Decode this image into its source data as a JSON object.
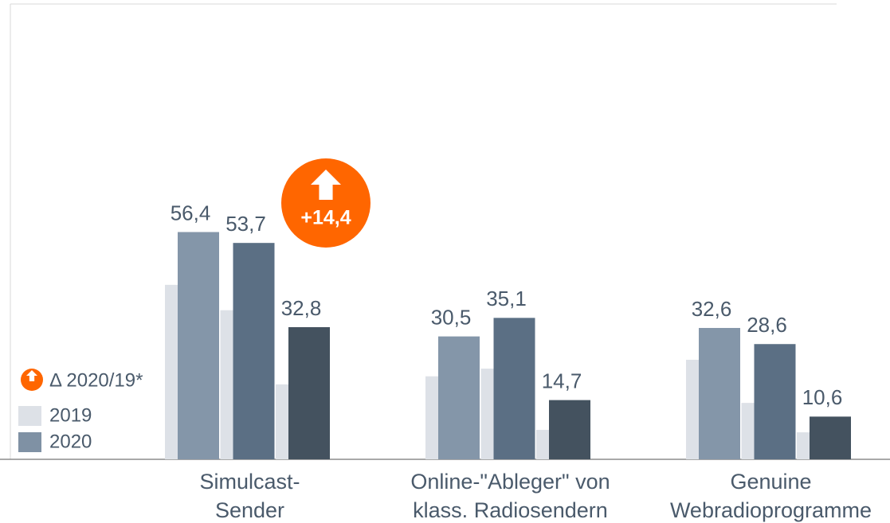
{
  "chart_data": {
    "type": "bar",
    "categories": [
      "Simulcast-\nSender",
      "Online-\"Ableger\" von\nklass. Radiosendern",
      "Genuine\nWebradioprogramme"
    ],
    "series": [
      {
        "name": "2019",
        "color": "#dde1e7",
        "values": [
          [
            43.3,
            37.0,
            18.6
          ],
          [
            20.6,
            22.5,
            7.3
          ],
          [
            24.7,
            14.0,
            6.7
          ]
        ]
      },
      {
        "name": "2020",
        "color": "#7f91a4",
        "colors": [
          "#8496a9",
          "#5b6f84",
          "#44525f"
        ],
        "values": [
          [
            56.4,
            53.7,
            32.8
          ],
          [
            30.5,
            35.1,
            14.7
          ],
          [
            32.6,
            28.6,
            10.6
          ]
        ],
        "value_labels": [
          [
            "56,4",
            "53,7",
            "32,8"
          ],
          [
            "30,5",
            "35,1",
            "14,7"
          ],
          [
            "32,6",
            "28,6",
            "10,6"
          ]
        ]
      }
    ],
    "annotations": [
      {
        "text": "+14,4",
        "value": 14.4,
        "color": "#ff6600"
      }
    ],
    "delta_legend": "Δ 2020/19*",
    "ylim": [
      0,
      113
    ]
  }
}
